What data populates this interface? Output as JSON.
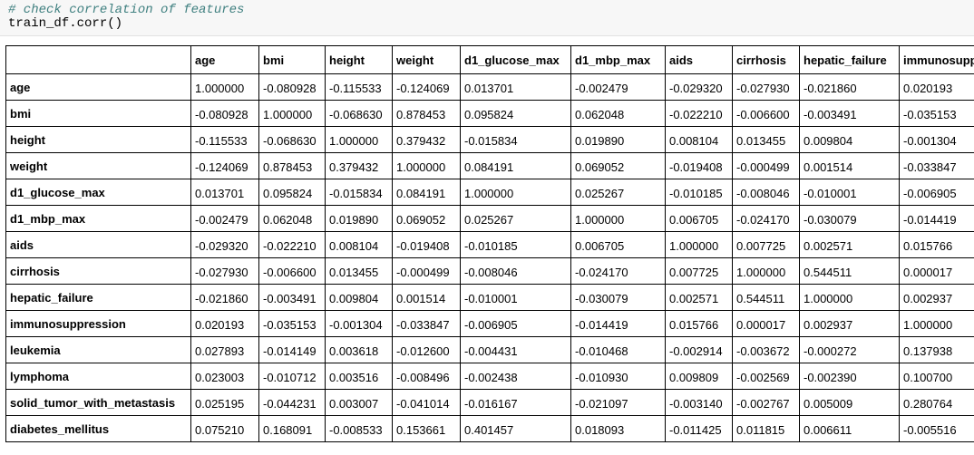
{
  "cell": {
    "comment": "# check correlation of features",
    "code": "train_df.corr()"
  },
  "table": {
    "columns": [
      "age",
      "bmi",
      "height",
      "weight",
      "d1_glucose_max",
      "d1_mbp_max",
      "aids",
      "cirrhosis",
      "hepatic_failure",
      "immunosupp"
    ],
    "rows": [
      {
        "label": "age",
        "values": [
          "1.000000",
          "-0.080928",
          "-0.115533",
          "-0.124069",
          "0.013701",
          "-0.002479",
          "-0.029320",
          "-0.027930",
          "-0.021860",
          "0.020193"
        ]
      },
      {
        "label": "bmi",
        "values": [
          "-0.080928",
          "1.000000",
          "-0.068630",
          "0.878453",
          "0.095824",
          "0.062048",
          "-0.022210",
          "-0.006600",
          "-0.003491",
          "-0.035153"
        ]
      },
      {
        "label": "height",
        "values": [
          "-0.115533",
          "-0.068630",
          "1.000000",
          "0.379432",
          "-0.015834",
          "0.019890",
          "0.008104",
          "0.013455",
          "0.009804",
          "-0.001304"
        ]
      },
      {
        "label": "weight",
        "values": [
          "-0.124069",
          "0.878453",
          "0.379432",
          "1.000000",
          "0.084191",
          "0.069052",
          "-0.019408",
          "-0.000499",
          "0.001514",
          "-0.033847"
        ]
      },
      {
        "label": "d1_glucose_max",
        "values": [
          "0.013701",
          "0.095824",
          "-0.015834",
          "0.084191",
          "1.000000",
          "0.025267",
          "-0.010185",
          "-0.008046",
          "-0.010001",
          "-0.006905"
        ]
      },
      {
        "label": "d1_mbp_max",
        "values": [
          "-0.002479",
          "0.062048",
          "0.019890",
          "0.069052",
          "0.025267",
          "1.000000",
          "0.006705",
          "-0.024170",
          "-0.030079",
          "-0.014419"
        ]
      },
      {
        "label": "aids",
        "values": [
          "-0.029320",
          "-0.022210",
          "0.008104",
          "-0.019408",
          "-0.010185",
          "0.006705",
          "1.000000",
          "0.007725",
          "0.002571",
          "0.015766"
        ]
      },
      {
        "label": "cirrhosis",
        "values": [
          "-0.027930",
          "-0.006600",
          "0.013455",
          "-0.000499",
          "-0.008046",
          "-0.024170",
          "0.007725",
          "1.000000",
          "0.544511",
          "0.000017"
        ]
      },
      {
        "label": "hepatic_failure",
        "values": [
          "-0.021860",
          "-0.003491",
          "0.009804",
          "0.001514",
          "-0.010001",
          "-0.030079",
          "0.002571",
          "0.544511",
          "1.000000",
          "0.002937"
        ]
      },
      {
        "label": "immunosuppression",
        "values": [
          "0.020193",
          "-0.035153",
          "-0.001304",
          "-0.033847",
          "-0.006905",
          "-0.014419",
          "0.015766",
          "0.000017",
          "0.002937",
          "1.000000"
        ]
      },
      {
        "label": "leukemia",
        "values": [
          "0.027893",
          "-0.014149",
          "0.003618",
          "-0.012600",
          "-0.004431",
          "-0.010468",
          "-0.002914",
          "-0.003672",
          "-0.000272",
          "0.137938"
        ]
      },
      {
        "label": "lymphoma",
        "values": [
          "0.023003",
          "-0.010712",
          "0.003516",
          "-0.008496",
          "-0.002438",
          "-0.010930",
          "0.009809",
          "-0.002569",
          "-0.002390",
          "0.100700"
        ]
      },
      {
        "label": "solid_tumor_with_metastasis",
        "values": [
          "0.025195",
          "-0.044231",
          "0.003007",
          "-0.041014",
          "-0.016167",
          "-0.021097",
          "-0.003140",
          "-0.002767",
          "0.005009",
          "0.280764"
        ]
      },
      {
        "label": "diabetes_mellitus",
        "values": [
          "0.075210",
          "0.168091",
          "-0.008533",
          "0.153661",
          "0.401457",
          "0.018093",
          "-0.011425",
          "0.011815",
          "0.006611",
          "-0.005516"
        ]
      }
    ]
  }
}
